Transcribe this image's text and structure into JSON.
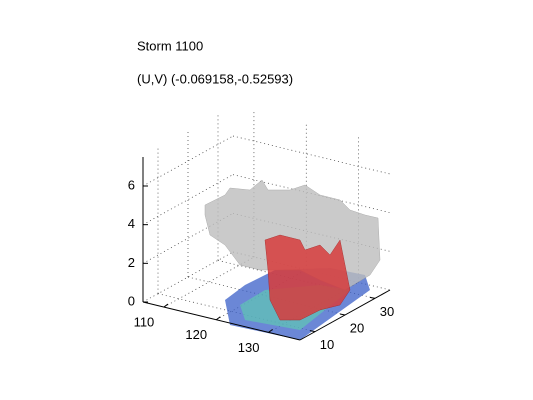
{
  "chart_data": {
    "type": "surface3d",
    "title": "Storm 1100",
    "subtitle": "(U,V) (-0.069158,-0.52593)",
    "xlim": [
      106,
      136
    ],
    "xticks": [
      110,
      120,
      130
    ],
    "ylim": [
      5,
      35
    ],
    "yticks": [
      10,
      20,
      30
    ],
    "zlim": [
      0,
      7.5
    ],
    "zticks": [
      0,
      2,
      4,
      6
    ],
    "grid": true
  }
}
